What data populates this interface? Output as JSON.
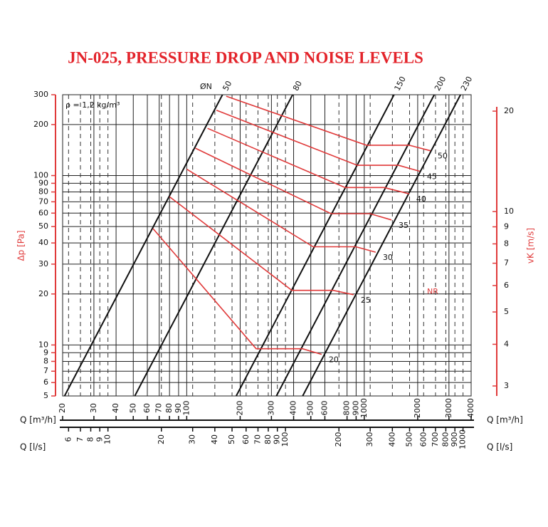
{
  "chart_data": {
    "type": "line",
    "title": "JN-025, PRESSURE DROP AND NOISE LEVELS",
    "xscale": "log",
    "yscale": "log",
    "xlim": [
      20,
      4000
    ],
    "ylim": [
      5,
      300
    ],
    "xticks": [
      20,
      30,
      40,
      50,
      60,
      70,
      80,
      90,
      100,
      200,
      300,
      400,
      500,
      600,
      800,
      900,
      1000,
      2000,
      3000,
      4000
    ],
    "yticks": [
      5,
      6,
      7,
      8,
      9,
      10,
      20,
      30,
      40,
      50,
      60,
      70,
      80,
      90,
      100,
      200,
      300
    ],
    "x2lim": [
      5.556,
      1111
    ],
    "x2ticks": [
      6,
      7,
      8,
      9,
      10,
      20,
      30,
      40,
      50,
      60,
      70,
      80,
      90,
      100,
      200,
      300,
      400,
      500,
      600,
      700,
      800,
      900,
      1000
    ],
    "y2lim": [
      2.8,
      22.4
    ],
    "y2ticks": [
      3,
      4,
      5,
      6,
      7,
      8,
      9,
      10,
      20
    ],
    "grid": true,
    "axis_color": "#e03a3a",
    "x_label": "Q [m³/h]",
    "x2_label": "Q [l/s]",
    "y_label": "Δp [Pa]",
    "y2_label": "vK [m/s]",
    "density_note": "ρ = 1,2 kg/m³",
    "diameter_label": "ØN",
    "noise_label": "NR",
    "series": [
      {
        "name": "50",
        "group": "diameter",
        "color": "#111111",
        "x": [
          20.5,
          159
        ],
        "values": [
          5,
          300
        ]
      },
      {
        "name": "80",
        "group": "diameter",
        "color": "#111111",
        "x": [
          51,
          395
        ],
        "values": [
          5,
          300
        ]
      },
      {
        "name": "150",
        "group": "diameter",
        "color": "#111111",
        "x": [
          190,
          1472
        ],
        "values": [
          5,
          300
        ]
      },
      {
        "name": "200",
        "group": "diameter",
        "color": "#111111",
        "x": [
          320,
          2479
        ],
        "values": [
          5,
          300
        ]
      },
      {
        "name": "230",
        "group": "diameter",
        "color": "#111111",
        "x": [
          450,
          3486
        ],
        "values": [
          5,
          300
        ]
      },
      {
        "name": "20",
        "group": "noise",
        "color": "#e03a3a",
        "x": [
          64.6,
          246,
          449,
          575
        ],
        "values": [
          48.6,
          9.5,
          9.5,
          8.8
        ]
      },
      {
        "name": "25",
        "group": "noise",
        "color": "#e03a3a",
        "x": [
          80,
          391,
          667,
          871
        ],
        "values": [
          75,
          21,
          21,
          19.8
        ]
      },
      {
        "name": "30",
        "group": "noise",
        "color": "#e03a3a",
        "x": [
          100,
          515,
          896,
          1160
        ],
        "values": [
          109,
          38,
          38,
          35.3
        ]
      },
      {
        "name": "35",
        "group": "noise",
        "color": "#e03a3a",
        "x": [
          112,
          649,
          1077,
          1422
        ],
        "values": [
          145,
          59.6,
          59.6,
          54.7
        ]
      },
      {
        "name": "40",
        "group": "noise",
        "color": "#e03a3a",
        "x": [
          131,
          780,
          1296,
          1790
        ],
        "values": [
          190,
          85,
          85,
          78
        ]
      },
      {
        "name": "45",
        "group": "noise",
        "color": "#e03a3a",
        "x": [
          147,
          913,
          1559,
          2055
        ],
        "values": [
          243,
          115,
          115,
          106
        ]
      },
      {
        "name": "50",
        "group": "noise",
        "color": "#e03a3a",
        "x": [
          167,
          1028,
          1790,
          2361
        ],
        "values": [
          294,
          151,
          151,
          140
        ]
      }
    ]
  }
}
